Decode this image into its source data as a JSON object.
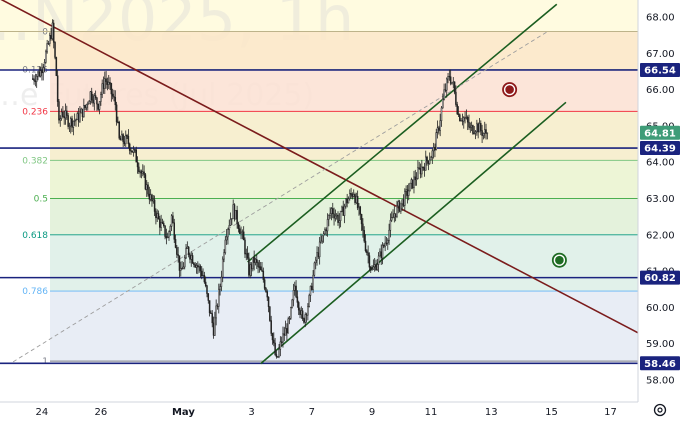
{
  "chart_data": {
    "type": "candlestick",
    "watermark": "…N2025, 1h",
    "watermark_sub": "…e Futures (Jul 2025)",
    "ylim": [
      57.6,
      68.4
    ],
    "y_ticks": [
      58.0,
      59.0,
      60.0,
      61.0,
      62.0,
      63.0,
      64.0,
      65.0,
      66.0,
      67.0,
      68.0
    ],
    "x_ticks": [
      {
        "label": "24",
        "bar": 7
      },
      {
        "label": "26",
        "bar": 52
      },
      {
        "label": "May",
        "bar": 115,
        "bold": true
      },
      {
        "label": "3",
        "bar": 167
      },
      {
        "label": "7",
        "bar": 213
      },
      {
        "label": "9",
        "bar": 259
      },
      {
        "label": "11",
        "bar": 304
      },
      {
        "label": "13",
        "bar": 350
      },
      {
        "label": "15",
        "bar": 396
      },
      {
        "label": "17",
        "bar": 441
      }
    ],
    "bars_count": 348,
    "xlim_bars": [
      -25,
      462
    ],
    "price_path": [
      [
        0,
        66.3
      ],
      [
        6,
        66.5
      ],
      [
        11,
        67.1
      ],
      [
        15,
        67.7
      ],
      [
        18,
        66.4
      ],
      [
        20,
        65.0
      ],
      [
        22,
        65.4
      ],
      [
        28,
        65.1
      ],
      [
        34,
        65.2
      ],
      [
        40,
        65.5
      ],
      [
        44,
        65.9
      ],
      [
        50,
        65.6
      ],
      [
        55,
        66.3
      ],
      [
        58,
        66.1
      ],
      [
        63,
        65.6
      ],
      [
        66,
        64.6
      ],
      [
        72,
        64.6
      ],
      [
        78,
        64.2
      ],
      [
        84,
        63.6
      ],
      [
        90,
        63.0
      ],
      [
        96,
        62.4
      ],
      [
        103,
        61.9
      ],
      [
        106,
        62.5
      ],
      [
        110,
        61.6
      ],
      [
        113,
        60.9
      ],
      [
        118,
        61.6
      ],
      [
        123,
        61.3
      ],
      [
        130,
        60.9
      ],
      [
        134,
        60.1
      ],
      [
        138,
        59.4
      ],
      [
        143,
        60.6
      ],
      [
        147,
        62.0
      ],
      [
        153,
        62.7
      ],
      [
        157,
        62.3
      ],
      [
        161,
        61.8
      ],
      [
        165,
        61.0
      ],
      [
        169,
        61.3
      ],
      [
        175,
        60.9
      ],
      [
        179,
        60.4
      ],
      [
        183,
        59.1
      ],
      [
        186,
        58.5
      ],
      [
        190,
        59.1
      ],
      [
        196,
        59.6
      ],
      [
        200,
        60.6
      ],
      [
        206,
        59.6
      ],
      [
        211,
        60.2
      ],
      [
        216,
        61.3
      ],
      [
        222,
        62.0
      ],
      [
        228,
        62.7
      ],
      [
        234,
        62.4
      ],
      [
        239,
        62.9
      ],
      [
        245,
        63.2
      ],
      [
        249,
        62.6
      ],
      [
        254,
        61.7
      ],
      [
        259,
        61.0
      ],
      [
        265,
        61.4
      ],
      [
        270,
        61.9
      ],
      [
        276,
        62.6
      ],
      [
        282,
        62.9
      ],
      [
        288,
        63.3
      ],
      [
        294,
        63.7
      ],
      [
        300,
        64.0
      ],
      [
        306,
        64.3
      ],
      [
        310,
        65.0
      ],
      [
        314,
        65.9
      ],
      [
        318,
        66.4
      ],
      [
        321,
        66.1
      ],
      [
        325,
        65.3
      ],
      [
        330,
        65.2
      ],
      [
        334,
        64.9
      ],
      [
        339,
        65.0
      ],
      [
        344,
        64.8
      ],
      [
        347,
        64.81
      ]
    ],
    "last_price": 64.81,
    "last_price_label": "64.81",
    "horizontal_levels": [
      {
        "value": 66.54,
        "label": "66.54",
        "color": "#1a237e"
      },
      {
        "value": 64.39,
        "label": "64.39",
        "color": "#1a237e"
      },
      {
        "value": 60.82,
        "label": "60.82",
        "color": "#1a237e"
      },
      {
        "value": 58.46,
        "label": "58.46",
        "color": "#1a237e"
      }
    ],
    "fib_levels": [
      {
        "ratio": "0",
        "value": 67.6,
        "color": "#787b86"
      },
      {
        "ratio": "0.125",
        "value": 66.55,
        "color": "#787b86"
      },
      {
        "ratio": "0.236",
        "value": 65.4,
        "color": "#f23645"
      },
      {
        "ratio": "0.382",
        "value": 64.05,
        "color": "#81c784"
      },
      {
        "ratio": "0.5",
        "value": 63.0,
        "color": "#4caf50"
      },
      {
        "ratio": "0.618",
        "value": 62.0,
        "color": "#089981"
      },
      {
        "ratio": "0.786",
        "value": 60.45,
        "color": "#64b5f6"
      },
      {
        "ratio": "1",
        "value": 58.52,
        "color": "#787b86"
      }
    ],
    "trend_lines": [
      {
        "name": "downtrend",
        "color": "#7b1c1c",
        "from": [
          -25,
          68.5
        ],
        "to": [
          462,
          59.3
        ]
      },
      {
        "name": "channel-upper",
        "color": "#1b5e20",
        "from": [
          164,
          61.25
        ],
        "to": [
          400,
          68.35
        ]
      },
      {
        "name": "channel-lower",
        "color": "#1b5e20",
        "from": [
          174,
          58.45
        ],
        "to": [
          407,
          65.65
        ]
      },
      {
        "name": "channel-mid-dashed",
        "color": "#9e9e9e",
        "from": [
          -15,
          58.5
        ],
        "to": [
          393,
          67.6
        ]
      }
    ],
    "markers": [
      {
        "name": "sell-target-circle",
        "x_bar": 364,
        "y": 66.0,
        "color": "#8e1a1a"
      },
      {
        "name": "buy-target-circle",
        "x_bar": 402,
        "y": 61.3,
        "color": "#1e6b22"
      }
    ],
    "colors": {
      "up": "#f7f7f7",
      "down": "#222222",
      "background": "#fffbe0"
    }
  }
}
